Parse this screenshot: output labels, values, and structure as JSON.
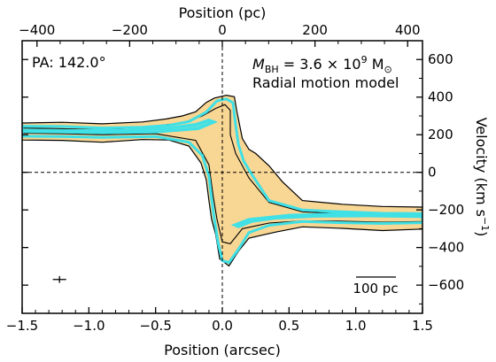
{
  "chart_data": {
    "type": "pv-diagram",
    "title": "",
    "axes": {
      "bottom": {
        "label": "Position (arcsec)",
        "range": [
          -1.5,
          1.5
        ],
        "ticks": [
          -1.5,
          -1.0,
          -0.5,
          0.0,
          0.5,
          1.0,
          1.5
        ],
        "tick_labels": [
          "−1.5",
          "−1.0",
          "−0.5",
          "0.0",
          "0.5",
          "1.0",
          "1.5"
        ]
      },
      "top": {
        "label": "Position (pc)",
        "ticks": [
          -400,
          -200,
          0,
          200,
          400
        ],
        "tick_labels": [
          "−400",
          "−200",
          "0",
          "200",
          "400"
        ],
        "pc_per_arcsec": 288
      },
      "right": {
        "label": "Velocity (km s",
        "label_superscript": "−1",
        "label_close": ")",
        "range": [
          -750,
          700
        ],
        "ticks": [
          -600,
          -400,
          -200,
          0,
          200,
          400,
          600
        ],
        "tick_labels": [
          "−600",
          "−400",
          "−200",
          "0",
          "200",
          "400",
          "600"
        ]
      }
    },
    "annotations": {
      "pa": "PA: 142.0°",
      "mbh_prefix": "M",
      "mbh_sub": "BH",
      "mbh_value": " = 3.6 × 10",
      "mbh_exp": "9",
      "mbh_unit": " M",
      "mbh_unit_sub": "⊙",
      "model": "Radial motion model",
      "scalebar_label": "100 pc"
    },
    "reference_lines": {
      "x": 0.0,
      "y": 0
    },
    "error_bar": {
      "x": -1.22,
      "y": -570,
      "xerr": 0.05,
      "yerr": 18
    },
    "colors": {
      "data_fill": "#f8d694",
      "data_contour": "#000000",
      "model_contour": "#3fe0e6"
    },
    "data_contour_outer": [
      [
        -1.5,
        262
      ],
      [
        -1.2,
        266
      ],
      [
        -0.9,
        258
      ],
      [
        -0.6,
        268
      ],
      [
        -0.42,
        284
      ],
      [
        -0.3,
        300
      ],
      [
        -0.2,
        322
      ],
      [
        -0.12,
        372
      ],
      [
        -0.06,
        395
      ],
      [
        0.03,
        410
      ],
      [
        0.09,
        402
      ],
      [
        0.11,
        320
      ],
      [
        0.13,
        250
      ],
      [
        0.15,
        180
      ],
      [
        0.2,
        122
      ],
      [
        0.25,
        100
      ],
      [
        0.35,
        35
      ],
      [
        0.45,
        -50
      ],
      [
        0.6,
        -150
      ],
      [
        0.9,
        -170
      ],
      [
        1.2,
        -182
      ],
      [
        1.5,
        -185
      ],
      [
        1.5,
        -302
      ],
      [
        1.2,
        -310
      ],
      [
        0.9,
        -298
      ],
      [
        0.6,
        -290
      ],
      [
        0.4,
        -318
      ],
      [
        0.2,
        -350
      ],
      [
        0.12,
        -420
      ],
      [
        0.05,
        -498
      ],
      [
        -0.02,
        -460
      ],
      [
        -0.05,
        -330
      ],
      [
        -0.08,
        -250
      ],
      [
        -0.1,
        -150
      ],
      [
        -0.12,
        -40
      ],
      [
        -0.16,
        50
      ],
      [
        -0.25,
        140
      ],
      [
        -0.4,
        172
      ],
      [
        -0.6,
        174
      ],
      [
        -0.9,
        160
      ],
      [
        -1.2,
        170
      ],
      [
        -1.5,
        172
      ]
    ],
    "data_contour_inner": [
      [
        -1.5,
        236
      ],
      [
        -1.2,
        232
      ],
      [
        -0.9,
        226
      ],
      [
        -0.6,
        240
      ],
      [
        -0.3,
        262
      ],
      [
        -0.15,
        300
      ],
      [
        -0.05,
        340
      ],
      [
        0.02,
        360
      ],
      [
        0.06,
        330
      ],
      [
        0.06,
        200
      ],
      [
        0.1,
        100
      ],
      [
        0.2,
        -30
      ],
      [
        0.35,
        -160
      ],
      [
        0.6,
        -210
      ],
      [
        0.9,
        -220
      ],
      [
        1.2,
        -226
      ],
      [
        1.5,
        -230
      ],
      [
        1.5,
        -262
      ],
      [
        1.2,
        -265
      ],
      [
        0.9,
        -260
      ],
      [
        0.6,
        -258
      ],
      [
        0.35,
        -270
      ],
      [
        0.15,
        -300
      ],
      [
        0.06,
        -380
      ],
      [
        0.0,
        -370
      ],
      [
        -0.04,
        -250
      ],
      [
        -0.07,
        -120
      ],
      [
        -0.1,
        40
      ],
      [
        -0.2,
        170
      ],
      [
        -0.5,
        205
      ],
      [
        -0.9,
        200
      ],
      [
        -1.2,
        205
      ],
      [
        -1.5,
        208
      ]
    ],
    "model_contour_outer": [
      [
        -1.5,
        245
      ],
      [
        -1.2,
        244
      ],
      [
        -0.9,
        236
      ],
      [
        -0.6,
        240
      ],
      [
        -0.4,
        250
      ],
      [
        -0.25,
        270
      ],
      [
        -0.12,
        320
      ],
      [
        -0.04,
        380
      ],
      [
        0.03,
        390
      ],
      [
        0.08,
        370
      ],
      [
        0.1,
        250
      ],
      [
        0.12,
        150
      ],
      [
        0.16,
        60
      ],
      [
        0.22,
        -10
      ],
      [
        0.35,
        -150
      ],
      [
        0.6,
        -200
      ],
      [
        0.9,
        -210
      ],
      [
        1.2,
        -218
      ],
      [
        1.5,
        -220
      ],
      [
        1.5,
        -268
      ],
      [
        1.2,
        -272
      ],
      [
        0.9,
        -268
      ],
      [
        0.6,
        -262
      ],
      [
        0.35,
        -282
      ],
      [
        0.2,
        -320
      ],
      [
        0.12,
        -410
      ],
      [
        0.05,
        -480
      ],
      [
        0.0,
        -470
      ],
      [
        -0.03,
        -380
      ],
      [
        -0.06,
        -250
      ],
      [
        -0.08,
        -140
      ],
      [
        -0.1,
        -20
      ],
      [
        -0.15,
        90
      ],
      [
        -0.25,
        160
      ],
      [
        -0.5,
        190
      ],
      [
        -0.9,
        186
      ],
      [
        -1.2,
        190
      ],
      [
        -1.5,
        192
      ]
    ],
    "model_contour_inner": [
      [
        -1.5,
        225
      ],
      [
        -1.1,
        222
      ],
      [
        -0.7,
        224
      ],
      [
        -0.4,
        236
      ],
      [
        -0.2,
        255
      ],
      [
        -0.1,
        278
      ],
      [
        -0.06,
        268
      ],
      [
        -0.18,
        232
      ],
      [
        -0.5,
        214
      ],
      [
        -0.9,
        210
      ],
      [
        -1.2,
        214
      ],
      [
        -1.5,
        216
      ]
    ],
    "model_contour_inner2": [
      [
        1.5,
        -236
      ],
      [
        1.1,
        -232
      ],
      [
        0.7,
        -234
      ],
      [
        0.4,
        -244
      ],
      [
        0.22,
        -262
      ],
      [
        0.12,
        -290
      ],
      [
        0.09,
        -280
      ],
      [
        0.2,
        -250
      ],
      [
        0.5,
        -228
      ],
      [
        0.9,
        -220
      ],
      [
        1.2,
        -222
      ],
      [
        1.5,
        -224
      ]
    ]
  }
}
